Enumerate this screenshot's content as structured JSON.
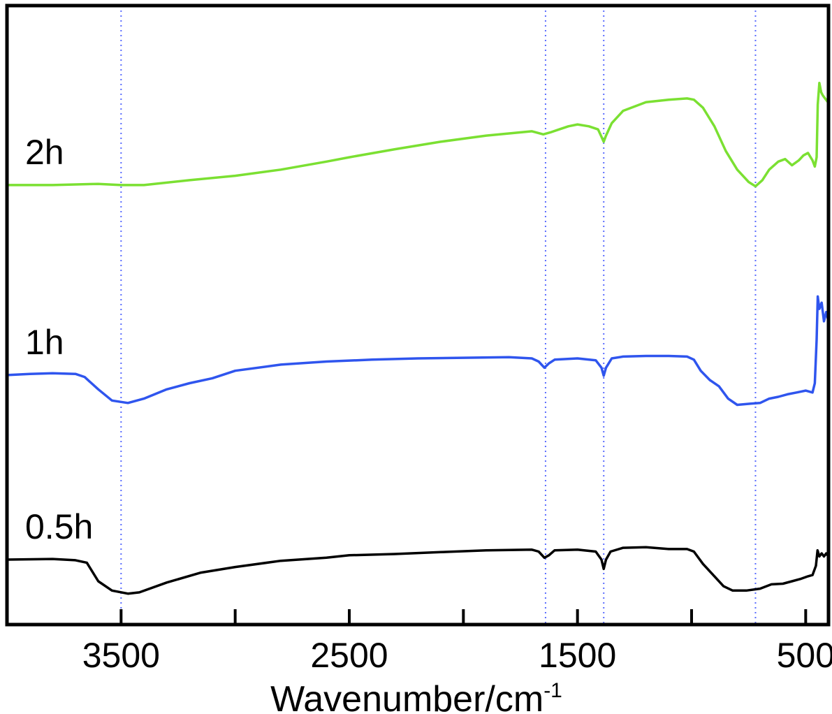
{
  "chart_data": {
    "type": "line",
    "title": "",
    "xlabel": "Wavenumber/cm",
    "xlabel_superscript": "-1",
    "ylabel": "",
    "xlim": [
      4000,
      400
    ],
    "ylim": [
      0,
      10
    ],
    "x_reversed": true,
    "grid": false,
    "y_axis_ticks": false,
    "x_ticks": [
      3500,
      3000,
      2500,
      2000,
      1500,
      1000,
      500
    ],
    "x_tick_labels": [
      "3500",
      "2500",
      "1500",
      "500"
    ],
    "reference_lines": [
      3500,
      1640,
      1385,
      720
    ],
    "reference_line_color": "#5a6cff",
    "series": [
      {
        "name": "0.5h",
        "color": "#000000",
        "points": [
          [
            4000,
            1.05
          ],
          [
            3800,
            1.06
          ],
          [
            3700,
            1.04
          ],
          [
            3650,
            1.0
          ],
          [
            3600,
            0.7
          ],
          [
            3540,
            0.55
          ],
          [
            3470,
            0.5
          ],
          [
            3420,
            0.52
          ],
          [
            3300,
            0.68
          ],
          [
            3150,
            0.84
          ],
          [
            3000,
            0.93
          ],
          [
            2800,
            1.03
          ],
          [
            2600,
            1.08
          ],
          [
            2500,
            1.12
          ],
          [
            2300,
            1.14
          ],
          [
            2100,
            1.17
          ],
          [
            1900,
            1.2
          ],
          [
            1700,
            1.21
          ],
          [
            1670,
            1.18
          ],
          [
            1645,
            1.08
          ],
          [
            1625,
            1.12
          ],
          [
            1600,
            1.2
          ],
          [
            1500,
            1.21
          ],
          [
            1420,
            1.18
          ],
          [
            1395,
            1.05
          ],
          [
            1385,
            0.9
          ],
          [
            1375,
            1.05
          ],
          [
            1355,
            1.18
          ],
          [
            1300,
            1.24
          ],
          [
            1200,
            1.25
          ],
          [
            1100,
            1.22
          ],
          [
            1020,
            1.22
          ],
          [
            990,
            1.18
          ],
          [
            950,
            0.98
          ],
          [
            900,
            0.78
          ],
          [
            860,
            0.62
          ],
          [
            820,
            0.55
          ],
          [
            760,
            0.55
          ],
          [
            700,
            0.58
          ],
          [
            650,
            0.65
          ],
          [
            600,
            0.66
          ],
          [
            560,
            0.7
          ],
          [
            520,
            0.74
          ],
          [
            490,
            0.78
          ],
          [
            470,
            0.8
          ],
          [
            455,
            0.95
          ],
          [
            448,
            1.2
          ],
          [
            440,
            1.1
          ],
          [
            430,
            1.15
          ],
          [
            420,
            1.1
          ],
          [
            410,
            1.15
          ],
          [
            400,
            1.1
          ]
        ]
      },
      {
        "name": "1h",
        "color": "#2f55ee",
        "points": [
          [
            4000,
            4.03
          ],
          [
            3900,
            4.05
          ],
          [
            3800,
            4.06
          ],
          [
            3700,
            4.05
          ],
          [
            3660,
            4.0
          ],
          [
            3600,
            3.8
          ],
          [
            3540,
            3.62
          ],
          [
            3470,
            3.58
          ],
          [
            3400,
            3.65
          ],
          [
            3300,
            3.8
          ],
          [
            3200,
            3.9
          ],
          [
            3100,
            3.98
          ],
          [
            3000,
            4.1
          ],
          [
            2800,
            4.2
          ],
          [
            2600,
            4.25
          ],
          [
            2400,
            4.28
          ],
          [
            2200,
            4.3
          ],
          [
            2000,
            4.31
          ],
          [
            1800,
            4.32
          ],
          [
            1700,
            4.3
          ],
          [
            1670,
            4.25
          ],
          [
            1645,
            4.15
          ],
          [
            1625,
            4.22
          ],
          [
            1600,
            4.28
          ],
          [
            1500,
            4.3
          ],
          [
            1420,
            4.27
          ],
          [
            1395,
            4.15
          ],
          [
            1385,
            4.02
          ],
          [
            1375,
            4.15
          ],
          [
            1350,
            4.3
          ],
          [
            1300,
            4.33
          ],
          [
            1200,
            4.34
          ],
          [
            1100,
            4.34
          ],
          [
            1020,
            4.33
          ],
          [
            990,
            4.28
          ],
          [
            960,
            4.1
          ],
          [
            920,
            3.95
          ],
          [
            880,
            3.85
          ],
          [
            840,
            3.65
          ],
          [
            800,
            3.55
          ],
          [
            740,
            3.57
          ],
          [
            700,
            3.58
          ],
          [
            660,
            3.65
          ],
          [
            620,
            3.68
          ],
          [
            580,
            3.72
          ],
          [
            540,
            3.75
          ],
          [
            500,
            3.78
          ],
          [
            470,
            3.75
          ],
          [
            460,
            3.9
          ],
          [
            452,
            4.6
          ],
          [
            447,
            5.3
          ],
          [
            440,
            5.1
          ],
          [
            430,
            5.2
          ],
          [
            420,
            4.9
          ],
          [
            410,
            5.05
          ],
          [
            400,
            4.9
          ]
        ]
      },
      {
        "name": "2h",
        "color": "#7be032",
        "points": [
          [
            4000,
            7.1
          ],
          [
            3800,
            7.1
          ],
          [
            3600,
            7.12
          ],
          [
            3500,
            7.1
          ],
          [
            3400,
            7.1
          ],
          [
            3200,
            7.18
          ],
          [
            3000,
            7.25
          ],
          [
            2800,
            7.35
          ],
          [
            2600,
            7.48
          ],
          [
            2500,
            7.55
          ],
          [
            2300,
            7.68
          ],
          [
            2100,
            7.8
          ],
          [
            1900,
            7.9
          ],
          [
            1700,
            7.97
          ],
          [
            1650,
            7.92
          ],
          [
            1620,
            7.95
          ],
          [
            1580,
            8.0
          ],
          [
            1540,
            8.05
          ],
          [
            1500,
            8.08
          ],
          [
            1450,
            8.05
          ],
          [
            1410,
            8.0
          ],
          [
            1395,
            7.88
          ],
          [
            1385,
            7.8
          ],
          [
            1375,
            7.9
          ],
          [
            1350,
            8.1
          ],
          [
            1300,
            8.3
          ],
          [
            1200,
            8.44
          ],
          [
            1100,
            8.48
          ],
          [
            1020,
            8.5
          ],
          [
            990,
            8.48
          ],
          [
            950,
            8.35
          ],
          [
            900,
            8.05
          ],
          [
            850,
            7.65
          ],
          [
            800,
            7.35
          ],
          [
            750,
            7.15
          ],
          [
            720,
            7.08
          ],
          [
            690,
            7.18
          ],
          [
            660,
            7.35
          ],
          [
            620,
            7.48
          ],
          [
            590,
            7.52
          ],
          [
            560,
            7.42
          ],
          [
            530,
            7.5
          ],
          [
            510,
            7.58
          ],
          [
            490,
            7.62
          ],
          [
            470,
            7.5
          ],
          [
            460,
            7.4
          ],
          [
            452,
            7.55
          ],
          [
            447,
            8.4
          ],
          [
            440,
            8.75
          ],
          [
            432,
            8.6
          ],
          [
            425,
            8.55
          ],
          [
            415,
            8.5
          ],
          [
            405,
            8.45
          ],
          [
            400,
            8.55
          ]
        ]
      }
    ]
  }
}
